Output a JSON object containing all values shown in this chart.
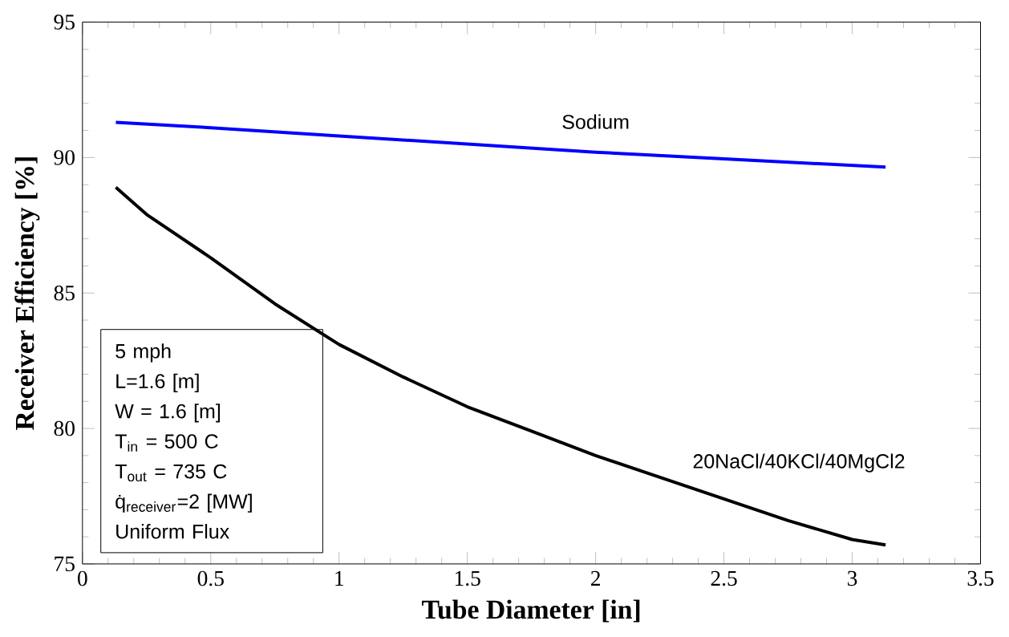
{
  "chart_data": {
    "type": "line",
    "xlabel": "Tube Diameter [in]",
    "ylabel": "Receiver Efficiency [%]",
    "xlim": [
      0,
      3.5
    ],
    "ylim": [
      75,
      95
    ],
    "xticks": [
      0,
      0.5,
      1,
      1.5,
      2,
      2.5,
      3,
      3.5
    ],
    "yticks": [
      75,
      80,
      85,
      90,
      95
    ],
    "grid": false,
    "legend": false,
    "marker": "none",
    "line_style": "solid",
    "series": [
      {
        "name": "Sodium",
        "color": "#0000ff",
        "x": [
          0.13,
          0.5,
          1,
          1.5,
          2,
          2.5,
          3.13
        ],
        "values": [
          91.3,
          91.1,
          90.8,
          90.5,
          90.2,
          89.95,
          89.65
        ]
      },
      {
        "name": "20NaCl/40KCl/40MgCl2",
        "color": "#000000",
        "x": [
          0.13,
          0.25,
          0.5,
          0.75,
          1,
          1.25,
          1.5,
          1.75,
          2,
          2.25,
          2.5,
          2.75,
          3,
          3.13
        ],
        "values": [
          88.9,
          87.9,
          86.3,
          84.6,
          83.1,
          81.9,
          80.8,
          79.9,
          79.0,
          78.2,
          77.4,
          76.6,
          75.9,
          75.7
        ]
      }
    ],
    "annotations": [
      "5 mph",
      "L=1.6 [m]",
      "W = 1.6 [m]",
      "T$_{in}$ = 500 C",
      "T$_{out}$ = 735 C",
      "q̇$_{receiver}$=2 [MW]",
      "Uniform Flux"
    ]
  }
}
